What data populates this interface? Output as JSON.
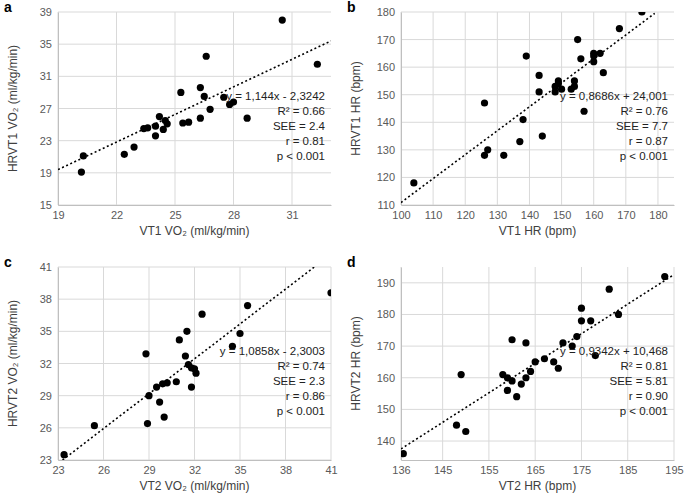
{
  "chart_data": [
    {
      "type": "scatter",
      "title": "a",
      "x_label": "VT1 VO₂ (ml/kg/min)",
      "y_label": "HRVT1 VO₂ (ml/kg/min)",
      "xlim": [
        19,
        33
      ],
      "xticks": [
        19,
        22,
        25,
        28,
        31
      ],
      "ylim": [
        15,
        39
      ],
      "yticks": [
        15,
        19,
        23,
        27,
        31,
        35,
        39
      ],
      "grid": true,
      "annotations": [
        "y = 1,144x - 2,3242",
        "R² = 0.66",
        "SEE = 2.4",
        "r = 0.81",
        "p < 0.001"
      ],
      "series": [
        {
          "type": "scatter",
          "marker": "circle",
          "color": "#000000",
          "x": [
            20.2,
            20.3,
            22.4,
            22.9,
            23.4,
            23.6,
            24.0,
            24.0,
            24.2,
            24.4,
            24.5,
            24.6,
            25.3,
            25.4,
            25.7,
            26.3,
            26.3,
            26.5,
            26.6,
            26.8,
            27.5,
            27.8,
            28.0,
            28.7,
            30.5,
            32.3
          ],
          "values": [
            19.1,
            21.1,
            21.3,
            22.2,
            24.5,
            24.6,
            23.6,
            24.8,
            26.0,
            24.4,
            25.5,
            25.1,
            29.0,
            25.2,
            25.3,
            29.6,
            25.8,
            28.5,
            33.5,
            26.9,
            28.4,
            27.5,
            27.8,
            25.8,
            38.0,
            32.5
          ]
        },
        {
          "type": "line",
          "line_style": "dotted",
          "color": "#000000",
          "x": [
            19,
            33
          ],
          "values": [
            19.4,
            35.4
          ]
        }
      ]
    },
    {
      "type": "scatter",
      "title": "b",
      "x_label": "VT1 HR (bpm)",
      "y_label": "HRVT1 HR (bpm)",
      "xlim": [
        100,
        185
      ],
      "xticks": [
        100,
        110,
        120,
        130,
        140,
        150,
        160,
        170,
        180
      ],
      "ylim": [
        110,
        180
      ],
      "yticks": [
        110,
        120,
        130,
        140,
        150,
        160,
        170,
        180
      ],
      "grid": true,
      "annotations": [
        "y = 0,8686x + 24,001",
        "R² = 0.76",
        "SEE = 7.7",
        "r = 0.87",
        "p < 0.001"
      ],
      "series": [
        {
          "type": "scatter",
          "marker": "circle",
          "color": "#000000",
          "x": [
            104,
            126,
            126,
            127,
            132,
            137,
            138,
            139,
            143,
            143,
            144,
            148,
            148,
            149,
            149,
            150,
            153,
            154,
            154,
            155,
            156,
            157,
            160,
            160,
            160,
            162,
            163,
            168,
            175
          ],
          "values": [
            118,
            147,
            128,
            130,
            128,
            133,
            141,
            164,
            151,
            157,
            135,
            151,
            153,
            155,
            154,
            152,
            152,
            153,
            155,
            170,
            163,
            144,
            162,
            165,
            164,
            165,
            158,
            174,
            180
          ]
        },
        {
          "type": "line",
          "line_style": "dotted",
          "color": "#000000",
          "x": [
            100,
            179
          ],
          "values": [
            110.9,
            179.5
          ]
        }
      ]
    },
    {
      "type": "scatter",
      "title": "c",
      "x_label": "VT2 VO₂ (ml/kg/min)",
      "y_label": "HRVT2 VO₂ (ml/kg/min)",
      "xlim": [
        23,
        41
      ],
      "xticks": [
        23,
        26,
        29,
        32,
        35,
        38,
        41
      ],
      "ylim": [
        23,
        41
      ],
      "yticks": [
        23,
        26,
        29,
        32,
        35,
        38,
        41
      ],
      "grid": true,
      "annotations": [
        "y = 1,0858x - 2,3003",
        "R² = 0.74",
        "SEE = 2.3",
        "r = 0.86",
        "p < 0.001"
      ],
      "series": [
        {
          "type": "scatter",
          "marker": "circle",
          "color": "#000000",
          "x": [
            23.4,
            25.4,
            28.8,
            28.9,
            29.0,
            29.5,
            29.7,
            29.9,
            30.0,
            30.2,
            30.8,
            31.0,
            31.4,
            31.5,
            31.6,
            31.8,
            31.8,
            32.0,
            32.1,
            32.5,
            34.5,
            35.0,
            35.5,
            41.0
          ],
          "values": [
            23.5,
            26.2,
            32.9,
            26.4,
            29.0,
            29.8,
            28.4,
            30.1,
            27.0,
            30.2,
            30.3,
            34.2,
            32.7,
            35.0,
            31.9,
            31.6,
            29.8,
            31.5,
            31.1,
            36.6,
            33.6,
            34.8,
            37.4,
            38.6
          ]
        },
        {
          "type": "line",
          "line_style": "dotted",
          "color": "#000000",
          "x": [
            23.3,
            39.9
          ],
          "values": [
            23.0,
            41.0
          ]
        }
      ]
    },
    {
      "type": "scatter",
      "title": "d",
      "x_label": "VT2 HR (bpm)",
      "y_label": "HRVT2 HR (bpm)",
      "xlim": [
        136,
        195
      ],
      "xticks": [
        136,
        145,
        155,
        165,
        175,
        185,
        195
      ],
      "ylim": [
        134,
        195
      ],
      "yticks": [
        140,
        150,
        160,
        170,
        180,
        190
      ],
      "grid": true,
      "annotations": [
        "y = 0,9342x + 10,468",
        "R² = 0.81",
        "SEE = 5.81",
        "r = 0.90",
        "p < 0.001"
      ],
      "series": [
        {
          "type": "scatter",
          "marker": "circle",
          "color": "#000000",
          "x": [
            136.5,
            148,
            149,
            150,
            158,
            159,
            159,
            160,
            160,
            161,
            162,
            163,
            163,
            164,
            165,
            167,
            169,
            170,
            171,
            173,
            174,
            175,
            175,
            177,
            178,
            181,
            183,
            193
          ],
          "values": [
            136,
            145,
            161,
            143,
            161,
            160,
            156,
            172,
            159,
            154,
            158,
            160,
            171,
            162,
            165,
            166,
            165,
            163,
            171,
            170,
            173,
            182,
            178,
            178,
            167,
            188,
            180,
            192
          ]
        },
        {
          "type": "line",
          "line_style": "dotted",
          "color": "#000000",
          "x": [
            136,
            195
          ],
          "values": [
            137.5,
            192.6
          ]
        }
      ]
    }
  ]
}
